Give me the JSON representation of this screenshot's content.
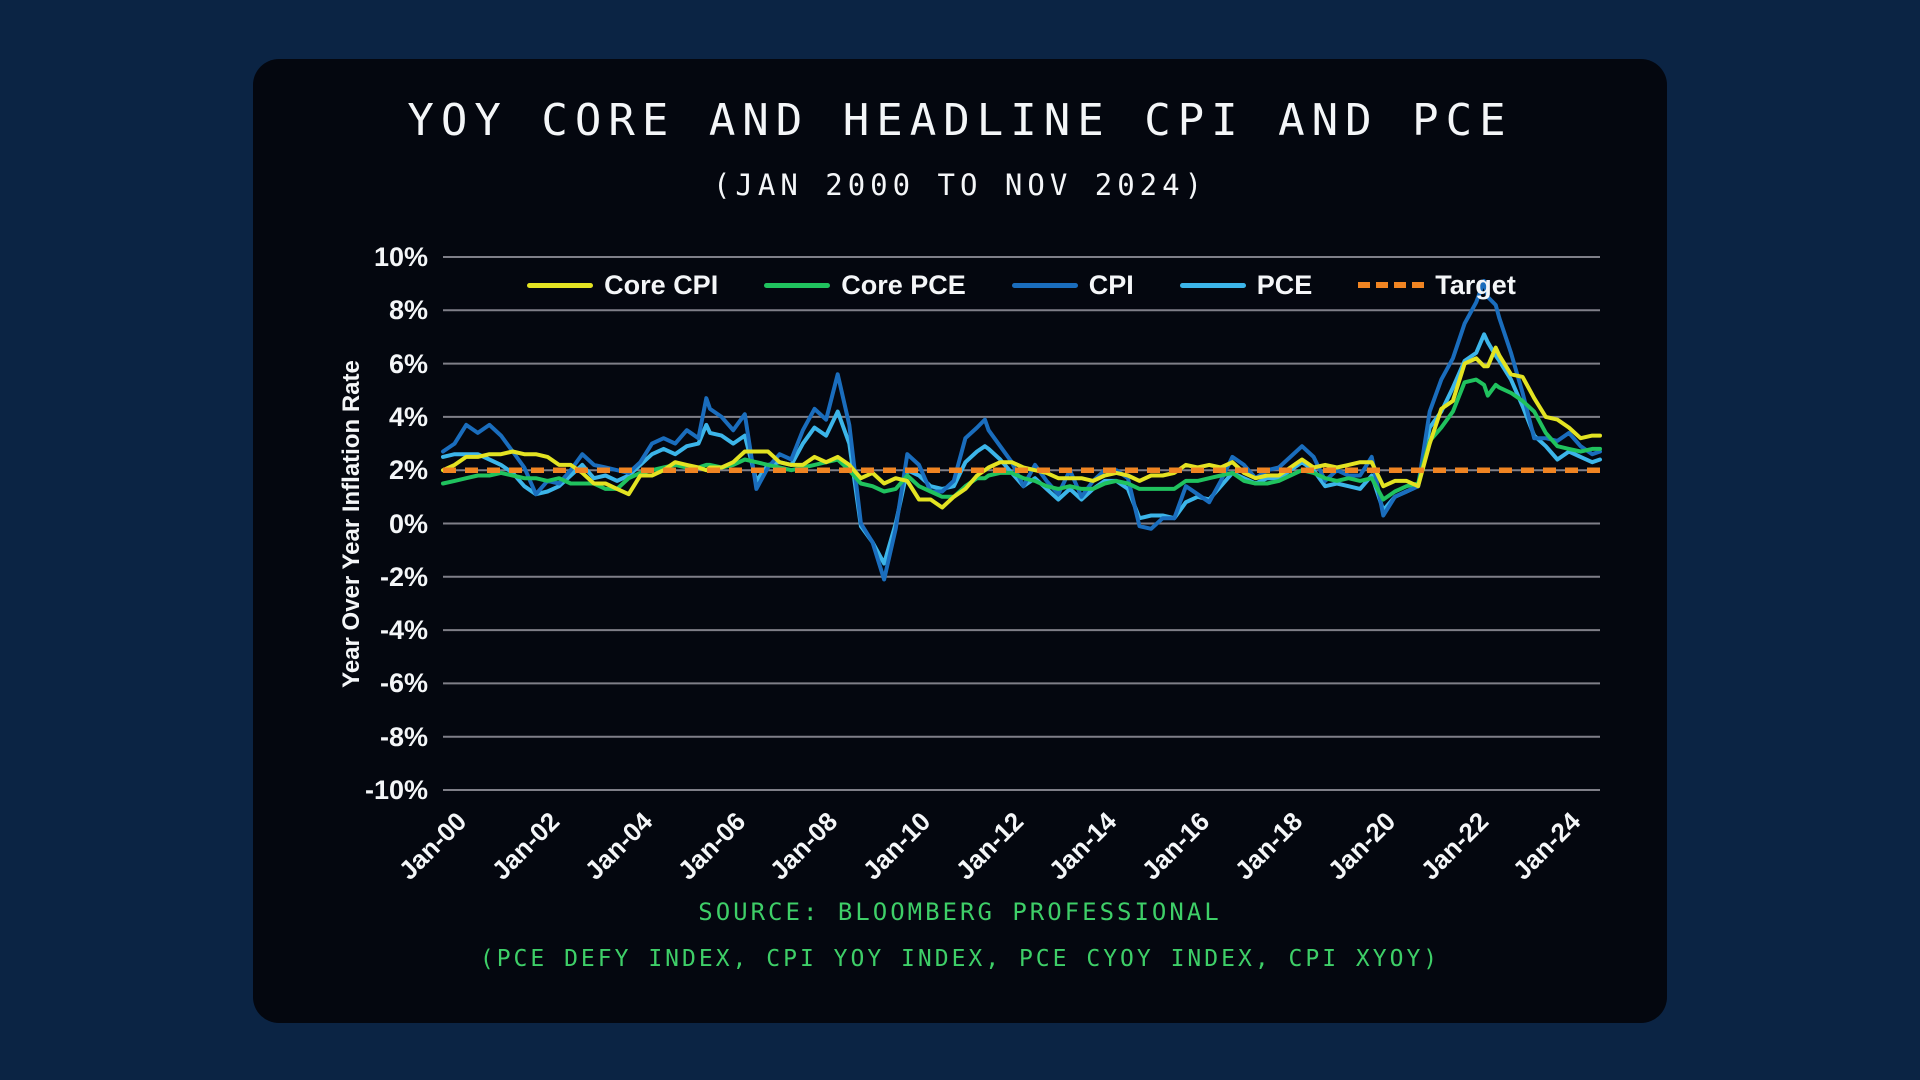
{
  "page": {
    "background": "#0b2444",
    "card_background": "#04070f",
    "grid_color": "#7f7f88",
    "text_color": "#f4f6f8"
  },
  "header": {
    "title": "YOY CORE AND HEADLINE CPI AND PCE",
    "subtitle": "(JAN 2000 TO NOV 2024)"
  },
  "footer": {
    "source_line1": "SOURCE: BLOOMBERG PROFESSIONAL",
    "source_line2": "(PCE DEFY INDEX, CPI YOY INDEX, PCE CYOY INDEX, CPI XYOY)",
    "color": "#3ecf68"
  },
  "chart_data": {
    "type": "line",
    "title": "YOY CORE AND HEADLINE CPI AND PCE",
    "subtitle": "(JAN 2000 TO NOV 2024)",
    "xlabel": "",
    "ylabel": "Year Over Year Inflation Rate",
    "ylim": [
      -10,
      10
    ],
    "ytick_suffix": "%",
    "yticks": [
      10,
      8,
      6,
      4,
      2,
      0,
      -2,
      -4,
      -6,
      -8,
      -10
    ],
    "grid": "horizontal",
    "legend_position": "top-center",
    "x_range": [
      2000,
      2024.917
    ],
    "xticks": [
      {
        "label": "Jan-00",
        "year": 2000
      },
      {
        "label": "Jan-02",
        "year": 2002
      },
      {
        "label": "Jan-04",
        "year": 2004
      },
      {
        "label": "Jan-06",
        "year": 2006
      },
      {
        "label": "Jan-08",
        "year": 2008
      },
      {
        "label": "Jan-10",
        "year": 2010
      },
      {
        "label": "Jan-12",
        "year": 2012
      },
      {
        "label": "Jan-14",
        "year": 2014
      },
      {
        "label": "Jan-16",
        "year": 2016
      },
      {
        "label": "Jan-18",
        "year": 2018
      },
      {
        "label": "Jan-20",
        "year": 2020
      },
      {
        "label": "Jan-22",
        "year": 2022
      },
      {
        "label": "Jan-24",
        "year": 2024
      }
    ],
    "x": [
      2000,
      2000.25,
      2000.5,
      2000.75,
      2001,
      2001.25,
      2001.5,
      2001.75,
      2002,
      2002.25,
      2002.5,
      2002.75,
      2003,
      2003.25,
      2003.5,
      2003.75,
      2004,
      2004.25,
      2004.5,
      2004.75,
      2005,
      2005.25,
      2005.5,
      2005.67,
      2005.75,
      2006,
      2006.25,
      2006.5,
      2006.75,
      2007,
      2007.25,
      2007.5,
      2007.75,
      2008,
      2008.25,
      2008.5,
      2008.75,
      2009,
      2009.25,
      2009.5,
      2009.75,
      2010,
      2010.25,
      2010.5,
      2010.75,
      2011,
      2011.25,
      2011.5,
      2011.67,
      2011.75,
      2012,
      2012.25,
      2012.5,
      2012.75,
      2013,
      2013.25,
      2013.5,
      2013.75,
      2014,
      2014.25,
      2014.5,
      2014.75,
      2015,
      2015.25,
      2015.5,
      2015.75,
      2016,
      2016.25,
      2016.5,
      2016.75,
      2017,
      2017.25,
      2017.5,
      2017.75,
      2018,
      2018.25,
      2018.5,
      2018.75,
      2019,
      2019.25,
      2019.5,
      2019.75,
      2020,
      2020.25,
      2020.5,
      2020.75,
      2021,
      2021.25,
      2021.5,
      2021.75,
      2022,
      2022.25,
      2022.42,
      2022.5,
      2022.67,
      2022.75,
      2023,
      2023.25,
      2023.5,
      2023.75,
      2024,
      2024.25,
      2024.5,
      2024.75,
      2024.917
    ],
    "series": [
      {
        "name": "Core CPI",
        "color": "#e3e322",
        "values": [
          2.0,
          2.2,
          2.5,
          2.5,
          2.6,
          2.6,
          2.7,
          2.6,
          2.6,
          2.5,
          2.2,
          2.2,
          1.9,
          1.5,
          1.5,
          1.3,
          1.1,
          1.8,
          1.8,
          2.0,
          2.3,
          2.2,
          2.1,
          2.0,
          2.1,
          2.1,
          2.3,
          2.7,
          2.7,
          2.7,
          2.3,
          2.2,
          2.2,
          2.5,
          2.3,
          2.5,
          2.2,
          1.7,
          1.9,
          1.5,
          1.7,
          1.6,
          0.9,
          0.9,
          0.6,
          1.0,
          1.3,
          1.8,
          2.0,
          2.1,
          2.3,
          2.3,
          2.1,
          2.0,
          1.9,
          1.7,
          1.7,
          1.7,
          1.6,
          1.8,
          1.9,
          1.8,
          1.6,
          1.8,
          1.8,
          1.9,
          2.2,
          2.1,
          2.2,
          2.1,
          2.3,
          1.9,
          1.7,
          1.8,
          1.8,
          2.1,
          2.4,
          2.1,
          2.2,
          2.1,
          2.2,
          2.3,
          2.3,
          1.4,
          1.6,
          1.6,
          1.4,
          3.0,
          4.3,
          4.6,
          6.0,
          6.2,
          5.9,
          5.9,
          6.6,
          6.3,
          5.6,
          5.5,
          4.7,
          4.0,
          3.9,
          3.6,
          3.2,
          3.3,
          3.3
        ]
      },
      {
        "name": "Core PCE",
        "color": "#20c25e",
        "values": [
          1.5,
          1.6,
          1.7,
          1.8,
          1.8,
          1.9,
          1.8,
          1.7,
          1.7,
          1.6,
          1.7,
          1.5,
          1.5,
          1.5,
          1.3,
          1.3,
          1.7,
          1.9,
          2.0,
          2.1,
          2.2,
          2.1,
          2.1,
          2.2,
          2.2,
          2.1,
          2.2,
          2.4,
          2.3,
          2.2,
          2.1,
          2.0,
          2.1,
          2.2,
          2.3,
          2.4,
          2.0,
          1.5,
          1.4,
          1.2,
          1.3,
          1.8,
          1.4,
          1.2,
          1.0,
          1.0,
          1.4,
          1.7,
          1.7,
          1.8,
          1.9,
          1.9,
          1.7,
          1.6,
          1.4,
          1.3,
          1.4,
          1.3,
          1.3,
          1.5,
          1.6,
          1.5,
          1.3,
          1.3,
          1.3,
          1.3,
          1.6,
          1.6,
          1.7,
          1.8,
          1.9,
          1.6,
          1.5,
          1.5,
          1.6,
          1.8,
          2.0,
          1.9,
          1.7,
          1.6,
          1.7,
          1.6,
          1.7,
          0.9,
          1.2,
          1.4,
          1.5,
          3.1,
          3.6,
          4.2,
          5.3,
          5.4,
          5.2,
          4.8,
          5.2,
          5.1,
          4.9,
          4.6,
          4.2,
          3.4,
          2.9,
          2.8,
          2.7,
          2.8,
          2.8
        ]
      },
      {
        "name": "CPI",
        "color": "#1a6dbd",
        "values": [
          2.7,
          3.0,
          3.7,
          3.4,
          3.7,
          3.3,
          2.7,
          2.1,
          1.1,
          1.6,
          1.5,
          2.0,
          2.6,
          2.2,
          2.1,
          2.0,
          1.9,
          2.3,
          3.0,
          3.2,
          3.0,
          3.5,
          3.2,
          4.7,
          4.3,
          4.0,
          3.5,
          4.1,
          1.3,
          2.1,
          2.6,
          2.4,
          3.5,
          4.3,
          3.9,
          5.6,
          3.7,
          0.0,
          -0.7,
          -2.1,
          -0.2,
          2.6,
          2.2,
          1.2,
          1.2,
          1.6,
          3.2,
          3.6,
          3.9,
          3.5,
          2.9,
          2.3,
          1.4,
          2.2,
          1.6,
          1.1,
          2.0,
          1.0,
          1.6,
          2.0,
          2.0,
          1.7,
          -0.1,
          -0.2,
          0.2,
          0.2,
          1.4,
          1.1,
          0.8,
          1.6,
          2.5,
          2.2,
          1.7,
          2.0,
          2.1,
          2.5,
          2.9,
          2.5,
          1.6,
          2.0,
          1.8,
          1.8,
          2.5,
          0.3,
          1.0,
          1.2,
          1.4,
          4.2,
          5.4,
          6.2,
          7.5,
          8.3,
          9.1,
          8.5,
          8.2,
          7.7,
          6.4,
          4.9,
          3.2,
          3.2,
          3.1,
          3.4,
          2.9,
          2.6,
          2.7
        ]
      },
      {
        "name": "PCE",
        "color": "#3cb5e9",
        "values": [
          2.5,
          2.6,
          2.6,
          2.6,
          2.4,
          2.2,
          1.9,
          1.4,
          1.1,
          1.2,
          1.4,
          1.8,
          2.2,
          1.7,
          1.8,
          1.6,
          1.8,
          2.2,
          2.6,
          2.8,
          2.6,
          2.9,
          3.0,
          3.7,
          3.4,
          3.3,
          3.0,
          3.3,
          1.6,
          2.2,
          2.3,
          2.2,
          3.0,
          3.6,
          3.3,
          4.2,
          3.0,
          -0.1,
          -0.7,
          -1.5,
          0.0,
          2.0,
          1.8,
          1.4,
          1.3,
          1.4,
          2.3,
          2.7,
          2.9,
          2.8,
          2.4,
          1.9,
          1.4,
          1.7,
          1.3,
          0.9,
          1.3,
          0.9,
          1.3,
          1.6,
          1.6,
          1.3,
          0.2,
          0.3,
          0.3,
          0.2,
          0.8,
          1.0,
          0.9,
          1.4,
          1.9,
          1.7,
          1.5,
          1.7,
          1.7,
          2.0,
          2.3,
          2.0,
          1.4,
          1.5,
          1.4,
          1.3,
          1.8,
          0.5,
          1.0,
          1.2,
          1.4,
          3.6,
          4.2,
          5.1,
          6.1,
          6.4,
          7.1,
          6.8,
          6.3,
          6.1,
          5.4,
          4.4,
          3.3,
          2.9,
          2.4,
          2.7,
          2.5,
          2.3,
          2.4
        ]
      },
      {
        "name": "Target",
        "color": "#f08422",
        "dashed": true,
        "constant": 2
      }
    ]
  }
}
